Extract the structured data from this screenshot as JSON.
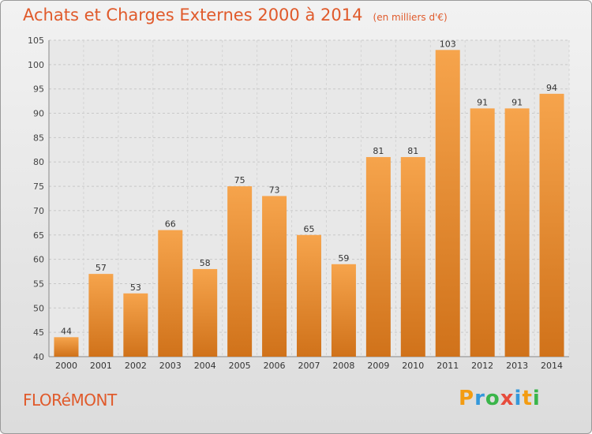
{
  "title": "Achats et Charges Externes 2000 à 2014",
  "unit": "(en milliers d'€)",
  "commune": "FLORéMONT",
  "brand": {
    "letters": [
      "P",
      "r",
      "o",
      "x",
      "i",
      "t",
      "i"
    ],
    "colors": [
      "#f39c12",
      "#3498db",
      "#3ab54a",
      "#e74c3c",
      "#3498db",
      "#f39c12",
      "#3ab54a"
    ]
  },
  "colors": {
    "bar": "#f39c34",
    "bar_dark": "#d0721a",
    "text": "#e05a2b"
  },
  "chart_data": {
    "type": "bar",
    "categories": [
      "2000",
      "2001",
      "2002",
      "2003",
      "2004",
      "2005",
      "2006",
      "2007",
      "2008",
      "2009",
      "2010",
      "2011",
      "2012",
      "2013",
      "2014"
    ],
    "values": [
      44,
      57,
      53,
      66,
      58,
      75,
      73,
      65,
      59,
      81,
      81,
      103,
      91,
      91,
      94
    ],
    "ylim": [
      40,
      105
    ],
    "yticks": [
      40,
      45,
      50,
      55,
      60,
      65,
      70,
      75,
      80,
      85,
      90,
      95,
      100,
      105
    ],
    "grid": true,
    "data_labels": true
  }
}
